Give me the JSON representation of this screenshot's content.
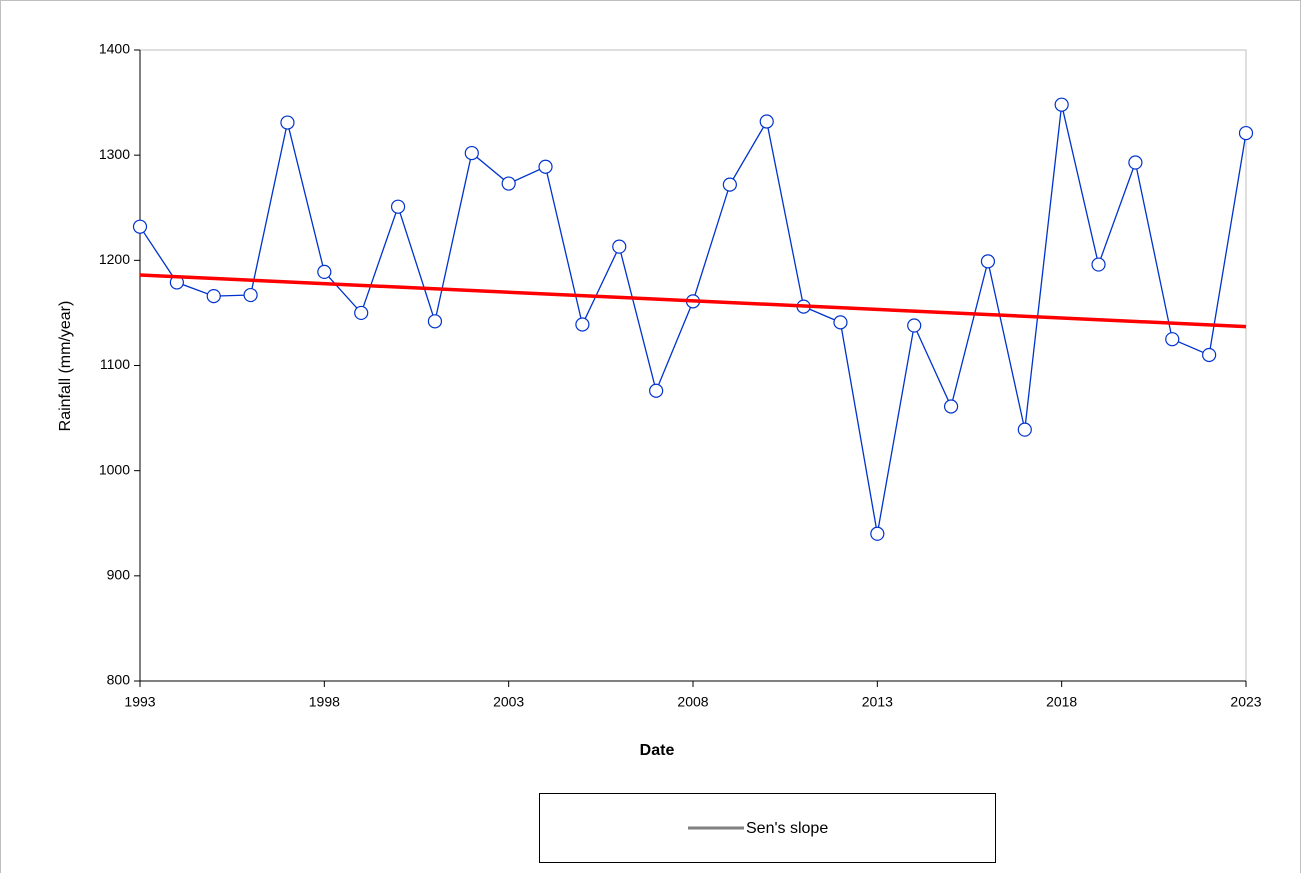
{
  "chart_data": {
    "type": "line",
    "x_label": "Date",
    "y_label": "Rainfall (mm/year)",
    "x": [
      1993,
      1994,
      1995,
      1996,
      1997,
      1998,
      1999,
      2000,
      2001,
      2002,
      2003,
      2004,
      2005,
      2006,
      2007,
      2008,
      2009,
      2010,
      2011,
      2012,
      2013,
      2014,
      2015,
      2016,
      2017,
      2018,
      2019,
      2020,
      2021,
      2022,
      2023
    ],
    "series": [
      {
        "color": "#0033cc",
        "marker": "circle",
        "values": [
          1232,
          1179,
          1166,
          1167,
          1331,
          1189,
          1150,
          1251,
          1142,
          1302,
          1273,
          1289,
          1139,
          1213,
          1076,
          1161,
          1272,
          1332,
          1156,
          1141,
          940,
          1138,
          1061,
          1199,
          1039,
          1348,
          1196,
          1293,
          1125,
          1110,
          1321
        ]
      },
      {
        "name": "Sen's slope",
        "color": "#ff0000",
        "legend_color": "#808080",
        "x": [
          1993,
          2023
        ],
        "values": [
          1186,
          1137
        ]
      }
    ],
    "xlim": [
      1993,
      2023
    ],
    "xticks": [
      1993,
      1998,
      2003,
      2008,
      2013,
      2018,
      2023
    ],
    "ylim": [
      800,
      1400
    ],
    "yticks": [
      800,
      900,
      1000,
      1100,
      1200,
      1300,
      1400
    ],
    "grid": false
  }
}
